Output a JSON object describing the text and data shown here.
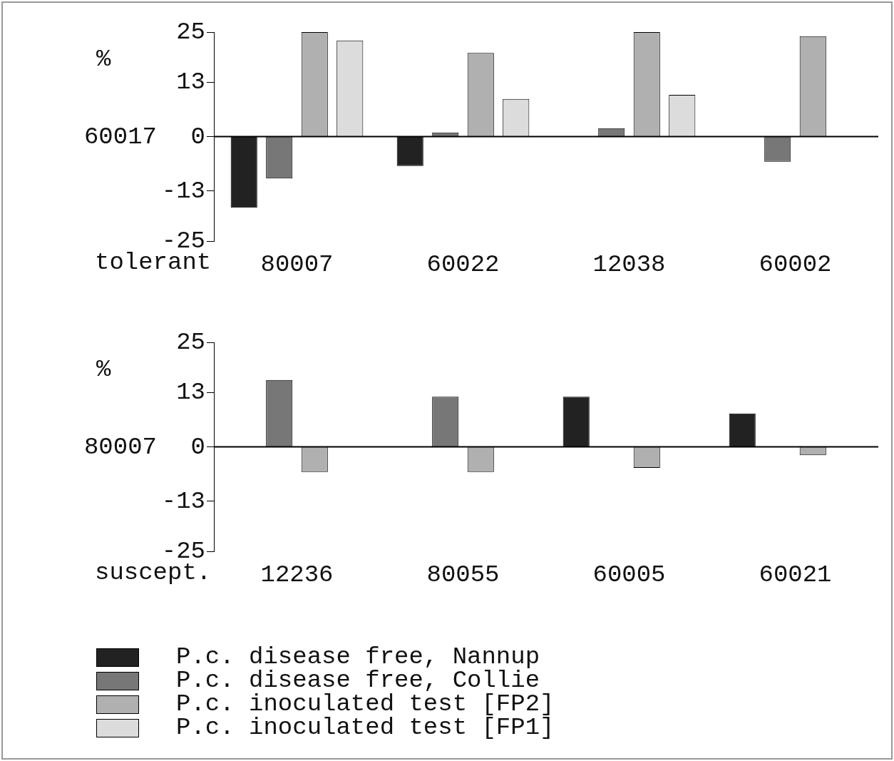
{
  "chart_data": [
    {
      "type": "bar",
      "categories": [
        "80007",
        "60022",
        "12038",
        "60002"
      ],
      "xlabel": "tolerant",
      "ylabel": "%",
      "series": [
        {
          "color": "#222222",
          "values": [
            -17,
            -7,
            null,
            null
          ]
        },
        {
          "color": "#777777",
          "values": [
            -10,
            1,
            2,
            -6
          ]
        },
        {
          "color": "#b0b0b0",
          "values": [
            25,
            20,
            25,
            24
          ]
        },
        {
          "color": "#dcdcdc",
          "values": [
            23,
            9,
            10,
            null
          ]
        }
      ],
      "ylim": [
        -25,
        25
      ],
      "yticks": [
        -25,
        -13,
        0,
        13,
        25
      ],
      "grid": false,
      "legend": false,
      "ref_lines": [
        {
          "axis": "y",
          "value": 0
        }
      ],
      "annotations": [
        "60017"
      ]
    },
    {
      "type": "bar",
      "categories": [
        "12236",
        "80055",
        "60005",
        "60021"
      ],
      "xlabel": "suscept.",
      "ylabel": "%",
      "series": [
        {
          "name": "P.c. disease free, Nannup",
          "color": "#222222",
          "values": [
            null,
            null,
            12,
            8
          ]
        },
        {
          "name": "P.c. disease free, Collie",
          "color": "#777777",
          "values": [
            16,
            12,
            null,
            null
          ]
        },
        {
          "name": "P.c. inoculated test [FP2]",
          "color": "#b0b0b0",
          "values": [
            -6,
            -6,
            -5,
            -2
          ]
        },
        {
          "name": "P.c. inoculated test [FP1]",
          "color": "#dcdcdc",
          "values": [
            null,
            null,
            null,
            null
          ]
        }
      ],
      "ylim": [
        -25,
        25
      ],
      "yticks": [
        -25,
        -13,
        0,
        13,
        25
      ],
      "grid": false,
      "legend": "bottom",
      "ref_lines": [
        {
          "axis": "y",
          "value": 0
        }
      ],
      "annotations": [
        "80007"
      ]
    }
  ]
}
